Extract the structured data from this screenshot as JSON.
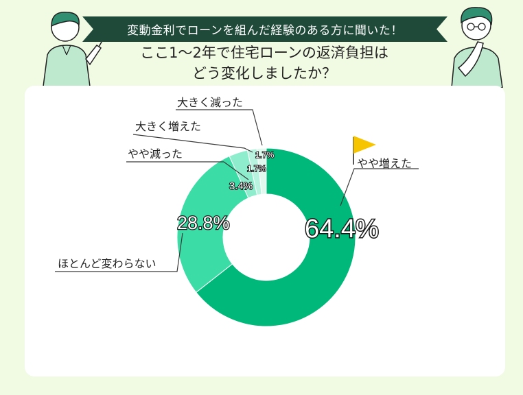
{
  "header": {
    "banner": "変動金利でローンを組んだ経験のある方に聞いた！",
    "title_line1": "ここ1〜2年で住宅ローンの返済負担は",
    "title_line2": "どう変化しましたか？"
  },
  "colors": {
    "background": "#f1fae3",
    "banner": "#1f4a3a",
    "slice_main": "#00b87a",
    "slice_same": "#3cdca6",
    "slice_small_down": "#8eedcd",
    "slice_big_up": "#b8f3df",
    "slice_big_down": "#dff9ef",
    "flag": "#f7c500"
  },
  "chart_data": {
    "type": "donut",
    "slices": [
      {
        "label": "やや増えた",
        "value": 64.4,
        "value_label": "64.4%"
      },
      {
        "label": "ほとんど変わらない",
        "value": 28.8,
        "value_label": "28.8%"
      },
      {
        "label": "やや減った",
        "value": 3.4,
        "value_label": "3.4%"
      },
      {
        "label": "大きく増えた",
        "value": 1.7,
        "value_label": "1.7%"
      },
      {
        "label": "大きく減った",
        "value": 1.7,
        "value_label": "1.7%"
      }
    ],
    "highlight_icon": "flag-icon"
  }
}
